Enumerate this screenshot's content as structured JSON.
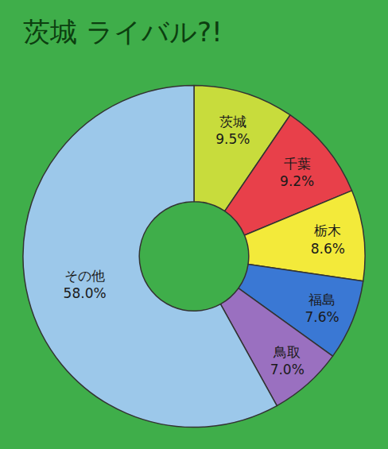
{
  "chart_data": {
    "type": "pie",
    "title": "茨城 ライバル?!",
    "categories": [
      "茨城",
      "千葉",
      "栃木",
      "福島",
      "鳥取",
      "その他"
    ],
    "values": [
      9.5,
      9.2,
      8.6,
      7.6,
      7.0,
      58.0
    ],
    "value_labels": [
      "9.5%",
      "9.2%",
      "8.6%",
      "7.6%",
      "7.0%",
      "58.0%"
    ],
    "colors": [
      "#c8dc3c",
      "#e8404a",
      "#f3ea3a",
      "#3a78d4",
      "#9a70c0",
      "#9cc8ea"
    ],
    "data_labels": true
  }
}
